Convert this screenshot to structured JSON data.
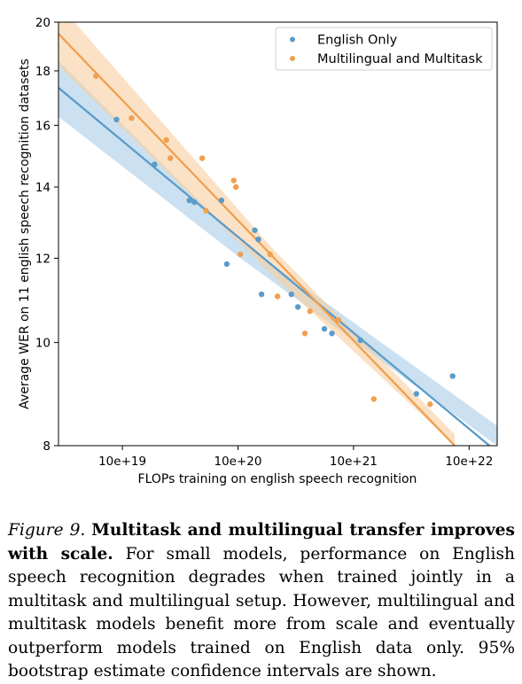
{
  "chart_data": {
    "type": "scatter",
    "xlabel": "FLOPs training on english speech recognition",
    "ylabel": "Average WER on 11 english speech recognition datasets",
    "x_scale": "log",
    "y_scale": "log",
    "xlim": [
      2.8e+18,
      1.75e+22
    ],
    "ylim": [
      8,
      20
    ],
    "x_ticks": [
      {
        "value": 1e+19,
        "label": "10e+19"
      },
      {
        "value": 1e+20,
        "label": "10e+20"
      },
      {
        "value": 1e+21,
        "label": "10e+21"
      },
      {
        "value": 1e+22,
        "label": "10e+22"
      }
    ],
    "y_ticks": [
      {
        "value": 8,
        "label": "8"
      },
      {
        "value": 10,
        "label": "10"
      },
      {
        "value": 12,
        "label": "12"
      },
      {
        "value": 14,
        "label": "14"
      },
      {
        "value": 16,
        "label": "16"
      },
      {
        "value": 18,
        "label": "18"
      },
      {
        "value": 20,
        "label": "20"
      }
    ],
    "grid": false,
    "legend_position": "top-right",
    "series": [
      {
        "name": "English Only",
        "color": "#5a9bc9",
        "band_color": "#a9cbe6",
        "points": [
          {
            "x": 8.9e+18,
            "y": 16.2
          },
          {
            "x": 1.9e+19,
            "y": 14.7
          },
          {
            "x": 3.8e+19,
            "y": 13.6
          },
          {
            "x": 4.2e+19,
            "y": 13.55
          },
          {
            "x": 7.2e+19,
            "y": 13.6
          },
          {
            "x": 8e+19,
            "y": 11.85
          },
          {
            "x": 1.4e+20,
            "y": 12.75
          },
          {
            "x": 1.5e+20,
            "y": 12.5
          },
          {
            "x": 1.6e+20,
            "y": 11.1
          },
          {
            "x": 2.9e+20,
            "y": 11.1
          },
          {
            "x": 3.3e+20,
            "y": 10.8
          },
          {
            "x": 5.6e+20,
            "y": 10.3
          },
          {
            "x": 6.5e+20,
            "y": 10.2
          },
          {
            "x": 1.15e+21,
            "y": 10.05
          },
          {
            "x": 3.5e+21,
            "y": 8.95
          },
          {
            "x": 7.2e+21,
            "y": 9.3
          }
        ],
        "fit": {
          "x1": 2.8e+18,
          "y1": 17.35,
          "x2": 1.5e+22,
          "y2": 8.0
        },
        "band": {
          "x": [
            2.8e+18,
            1e+20,
            1.75e+22
          ],
          "lower": [
            16.3,
            12.05,
            8.0
          ],
          "upper": [
            18.4,
            12.5,
            8.35
          ]
        }
      },
      {
        "name": "Multilingual and Multitask",
        "color": "#f0a050",
        "band_color": "#f8cfa0",
        "points": [
          {
            "x": 5.9e+18,
            "y": 17.8
          },
          {
            "x": 1.2e+19,
            "y": 16.25
          },
          {
            "x": 2.4e+19,
            "y": 15.5
          },
          {
            "x": 2.6e+19,
            "y": 14.9
          },
          {
            "x": 4.9e+19,
            "y": 14.9
          },
          {
            "x": 5.3e+19,
            "y": 13.3
          },
          {
            "x": 9.2e+19,
            "y": 14.2
          },
          {
            "x": 9.6e+19,
            "y": 14.0
          },
          {
            "x": 1.05e+20,
            "y": 12.1
          },
          {
            "x": 1.9e+20,
            "y": 12.1
          },
          {
            "x": 2.2e+20,
            "y": 11.05
          },
          {
            "x": 3.8e+20,
            "y": 10.2
          },
          {
            "x": 4.2e+20,
            "y": 10.7
          },
          {
            "x": 7.4e+20,
            "y": 10.5
          },
          {
            "x": 1.5e+21,
            "y": 8.85
          },
          {
            "x": 4.6e+21,
            "y": 8.75
          }
        ],
        "fit": {
          "x1": 2.8e+18,
          "y1": 19.5,
          "x2": 7.5e+21,
          "y2": 8.0
        },
        "band": {
          "x": [
            2.8e+18,
            2e+20,
            7.5e+21
          ],
          "lower": [
            18.2,
            11.55,
            8.0
          ],
          "upper": [
            20.8,
            12.25,
            8.2
          ]
        }
      }
    ]
  },
  "caption": {
    "label": "Figure 9.",
    "bold": "Multitask and multilingual transfer improves with scale.",
    "body": "For small models, performance on English speech recognition degrades when trained jointly in a multitask and multilingual setup. However, multilingual and multitask models benefit more from scale and eventually outperform models trained on English data only. 95% bootstrap estimate confidence intervals are shown."
  }
}
